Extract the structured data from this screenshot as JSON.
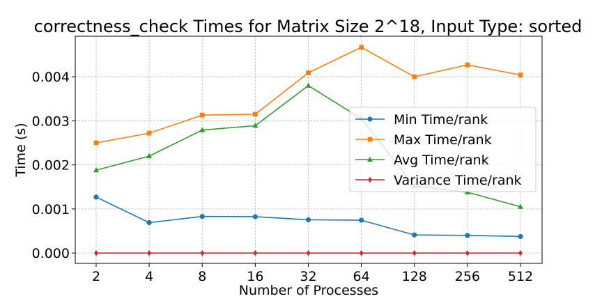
{
  "chart_data": {
    "type": "line",
    "title": "correctness_check Times for Matrix Size 2^18, Input Type: sorted",
    "xlabel": "Number of Processes",
    "ylabel": "Time (s)",
    "categories": [
      "2",
      "4",
      "8",
      "16",
      "32",
      "64",
      "128",
      "256",
      "512"
    ],
    "ylim": [
      -0.000235,
      0.00492
    ],
    "yticks": [
      0.0,
      0.001,
      0.002,
      0.003,
      0.004
    ],
    "ytick_labels": [
      "0.000",
      "0.001",
      "0.002",
      "0.003",
      "0.004"
    ],
    "grid": true,
    "legend_position": "center-right",
    "series": [
      {
        "name": "Min Time/rank",
        "color": "#1f77b4",
        "marker": "circle",
        "values": [
          0.00127,
          0.00069,
          0.00083,
          0.000825,
          0.000755,
          0.000745,
          0.00041,
          0.0004,
          0.000375
        ]
      },
      {
        "name": "Max Time/rank",
        "color": "#ff7f0e",
        "marker": "square",
        "values": [
          0.0025,
          0.00272,
          0.00313,
          0.00315,
          0.00409,
          0.00467,
          0.004,
          0.00427,
          0.00404
        ]
      },
      {
        "name": "Avg Time/rank",
        "color": "#2ca02c",
        "marker": "triangle",
        "values": [
          0.00188,
          0.0022,
          0.00279,
          0.00289,
          0.0038,
          0.00305,
          0.00152,
          0.00138,
          0.00105
        ]
      },
      {
        "name": "Variance Time/rank",
        "color": "#d62728",
        "marker": "diamond",
        "values": [
          0.0,
          0.0,
          0.0,
          0.0,
          0.0,
          0.0,
          0.0,
          0.0,
          0.0
        ]
      }
    ]
  }
}
